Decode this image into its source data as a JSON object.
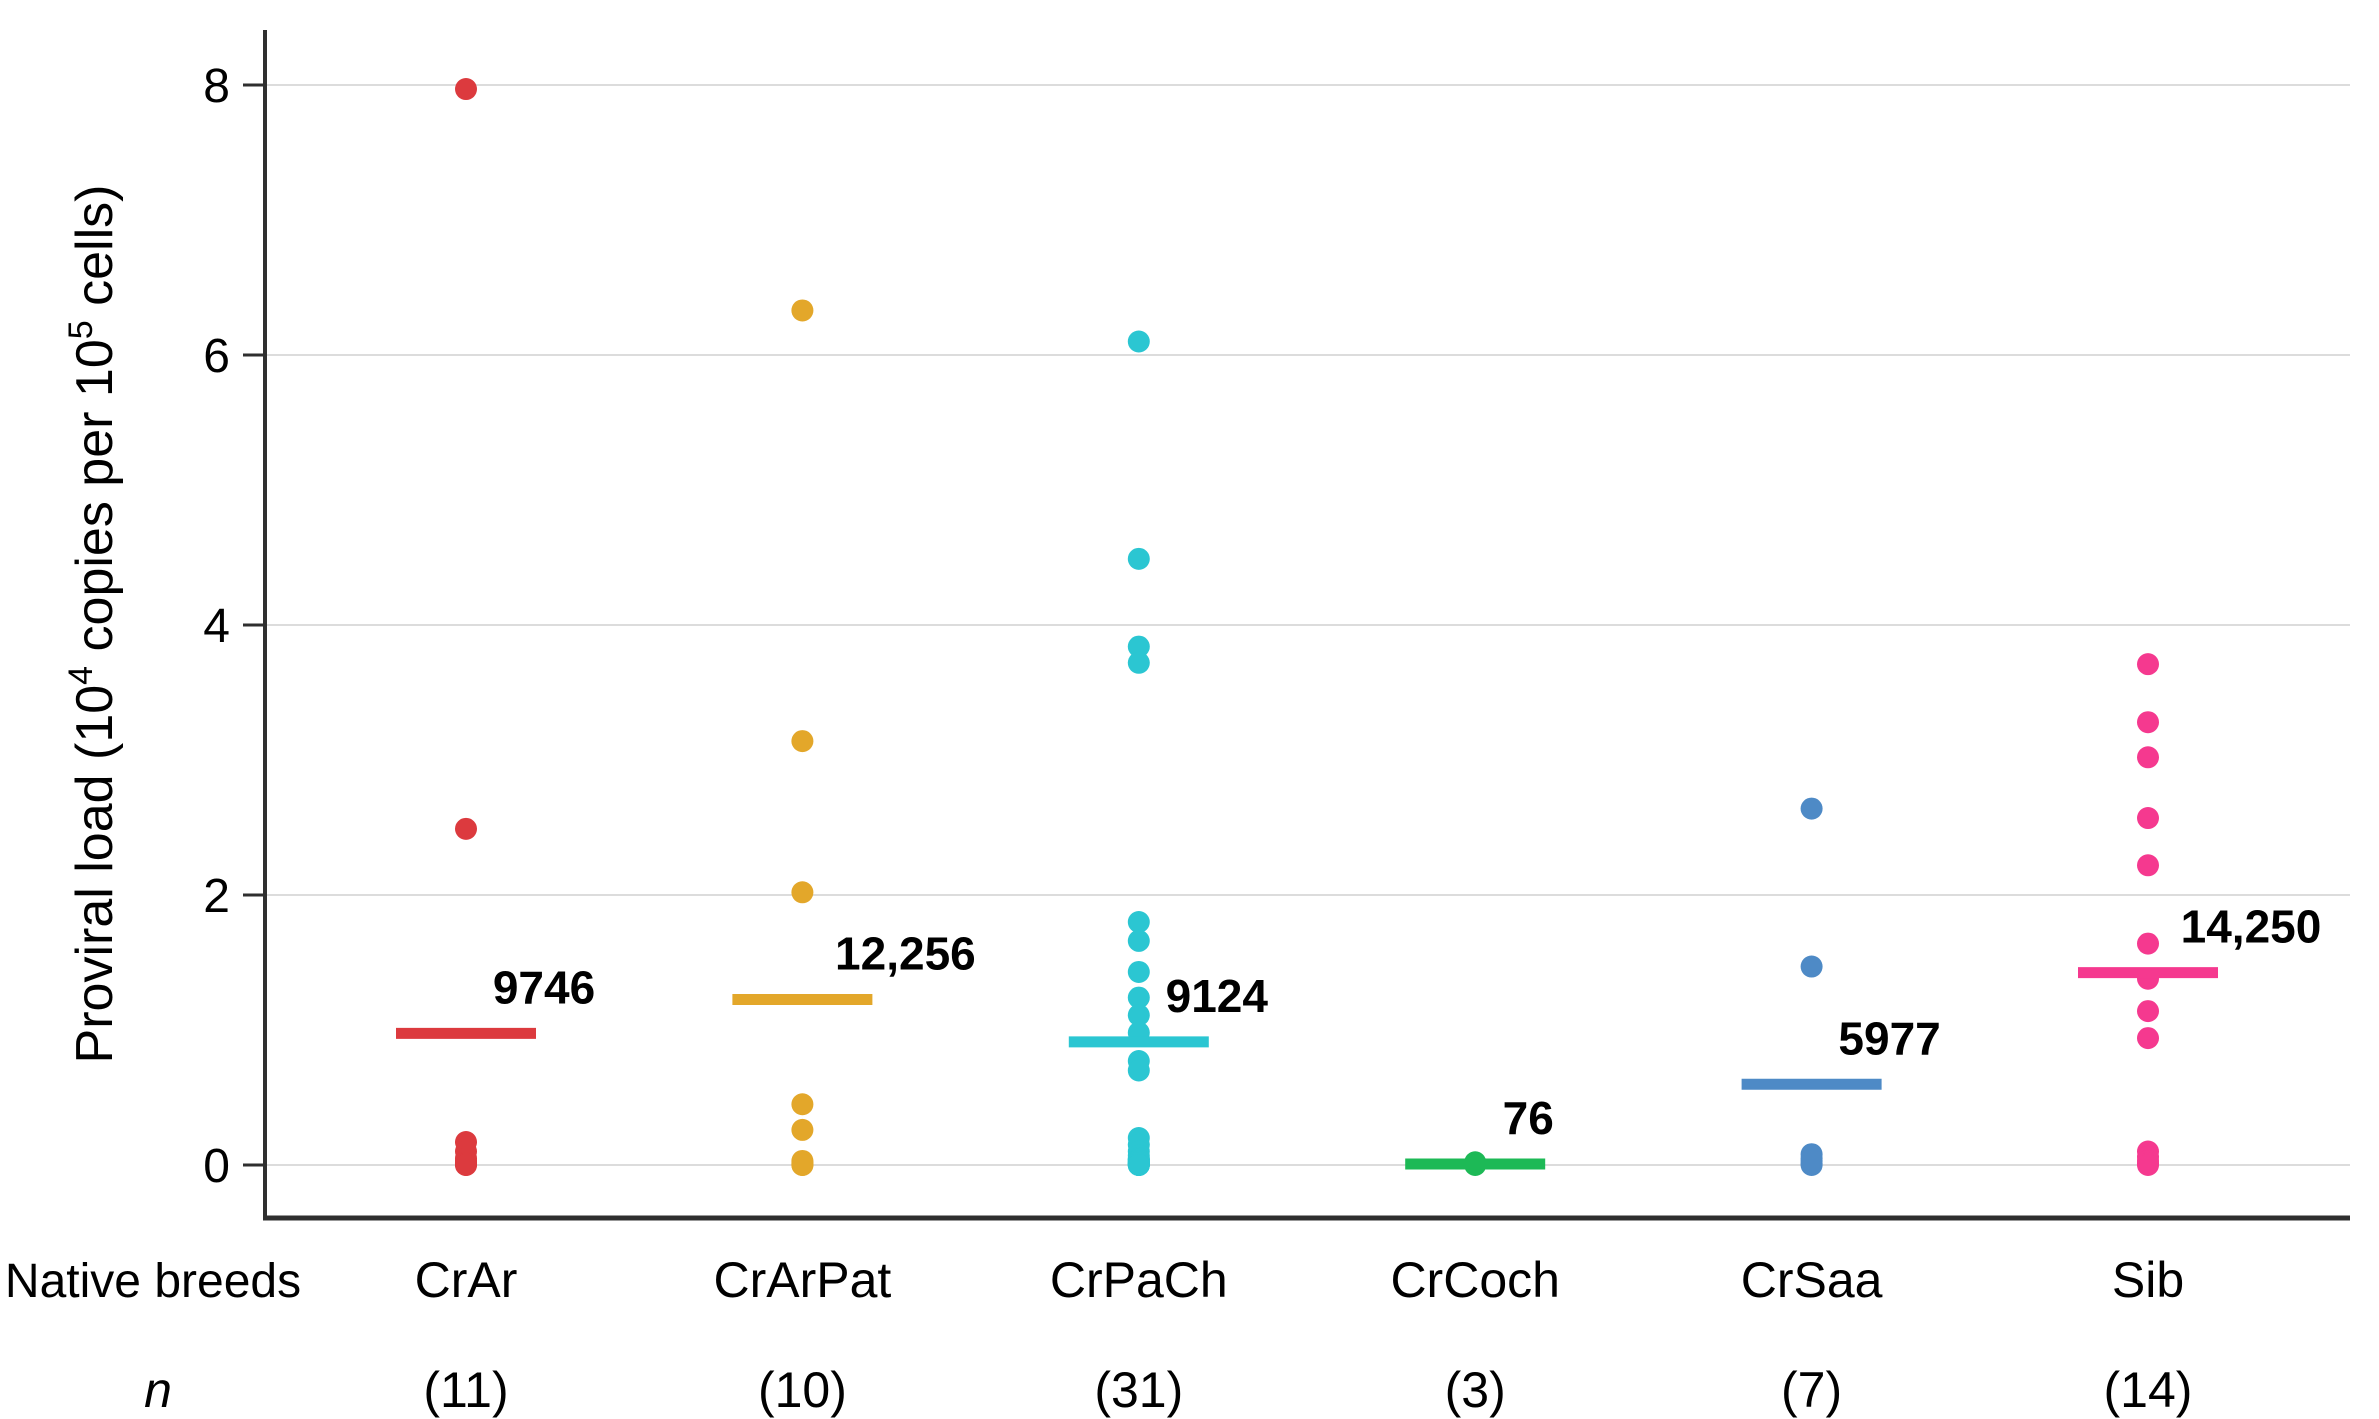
{
  "colors": {
    "background": "#ffffff",
    "grid": "#dcdcdc",
    "axis": "#2f2f2f",
    "text": "#000000"
  },
  "chart_data": {
    "type": "scatter",
    "subtype": "strip-plot-with-mean-bars",
    "title": "",
    "ylabel": "Proviral load (10^4 copies per 10^5 cells)",
    "ylabel_parts": [
      {
        "text": "Proviral load (10"
      },
      {
        "text": "4",
        "sup": true
      },
      {
        "text": " copies per 10"
      },
      {
        "text": "5",
        "sup": true
      },
      {
        "text": " cells)"
      }
    ],
    "yticks": [
      0,
      2,
      4,
      6,
      8
    ],
    "ylim": [
      0,
      8.6
    ],
    "grid": "horizontal",
    "x_axis_header": "Native breeds",
    "n_header": "n",
    "series": [
      {
        "breed": "CrAr",
        "n": "(11)",
        "color": "#dc3a3e",
        "mean_label": "9746",
        "mean_value": 0.9746,
        "values": [
          7.97,
          2.49,
          0.17,
          0.1,
          0.05,
          0.03,
          0.02,
          0.01,
          0.01,
          0.0,
          0.0
        ]
      },
      {
        "breed": "CrArPat",
        "n": "(10)",
        "color": "#e3a72a",
        "mean_label": "12,256",
        "mean_value": 1.2256,
        "values": [
          6.33,
          3.14,
          2.02,
          0.45,
          0.26,
          0.03,
          0.02,
          0.01,
          0.0,
          0.0
        ]
      },
      {
        "breed": "CrPaCh",
        "n": "(31)",
        "color": "#2bc6d2",
        "mean_label": "9124",
        "mean_value": 0.9124,
        "values": [
          6.1,
          4.49,
          3.84,
          3.72,
          1.8,
          1.66,
          1.43,
          1.24,
          1.11,
          0.98,
          0.77,
          0.7,
          0.2,
          0.15,
          0.1,
          0.07,
          0.05,
          0.04,
          0.04,
          0.03,
          0.03,
          0.02,
          0.02,
          0.01,
          0.01,
          0.01,
          0.0,
          0.0,
          0.0,
          0.0,
          0.0
        ]
      },
      {
        "breed": "CrCoch",
        "n": "(3)",
        "color": "#1db956",
        "mean_label": "76",
        "mean_value": 0.0076,
        "values": [
          0.02,
          0.01,
          0.0
        ]
      },
      {
        "breed": "CrSaa",
        "n": "(7)",
        "color": "#4e8ac6",
        "mean_label": "5977",
        "mean_value": 0.5977,
        "values": [
          2.64,
          1.47,
          0.08,
          0.05,
          0.03,
          0.01,
          0.0
        ]
      },
      {
        "breed": "Sib",
        "n": "(14)",
        "color": "#f5398f",
        "mean_label": "14,250",
        "mean_value": 1.425,
        "values": [
          3.71,
          3.28,
          3.02,
          2.57,
          2.22,
          1.64,
          1.38,
          1.14,
          0.94,
          0.1,
          0.06,
          0.03,
          0.01,
          0.0
        ]
      }
    ]
  }
}
